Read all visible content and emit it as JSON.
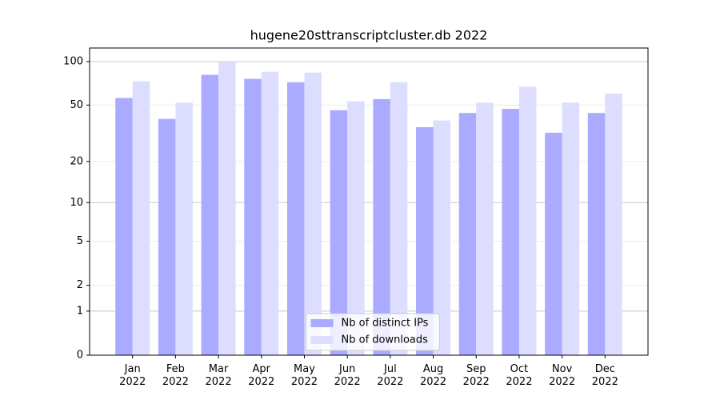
{
  "chart_data": {
    "type": "bar",
    "title": "hugene20sttranscriptcluster.db 2022",
    "categories": [
      "Jan\n2022",
      "Feb\n2022",
      "Mar\n2022",
      "Apr\n2022",
      "May\n2022",
      "Jun\n2022",
      "Jul\n2022",
      "Aug\n2022",
      "Sep\n2022",
      "Oct\n2022",
      "Nov\n2022",
      "Dec\n2022"
    ],
    "series": [
      {
        "name": "Nb of distinct IPs",
        "color": "#aaaaff",
        "values": [
          56,
          40,
          81,
          76,
          72,
          46,
          55,
          35,
          44,
          47,
          32,
          44
        ]
      },
      {
        "name": "Nb of downloads",
        "color": "#ddddff",
        "values": [
          73,
          52,
          100,
          85,
          84,
          53,
          72,
          39,
          52,
          67,
          52,
          60
        ]
      }
    ],
    "yscale": "symlog",
    "ylim": [
      0,
      124
    ],
    "yticks": [
      0,
      1,
      2,
      5,
      10,
      20,
      50,
      100
    ],
    "grid": true,
    "legend": "lower center"
  }
}
